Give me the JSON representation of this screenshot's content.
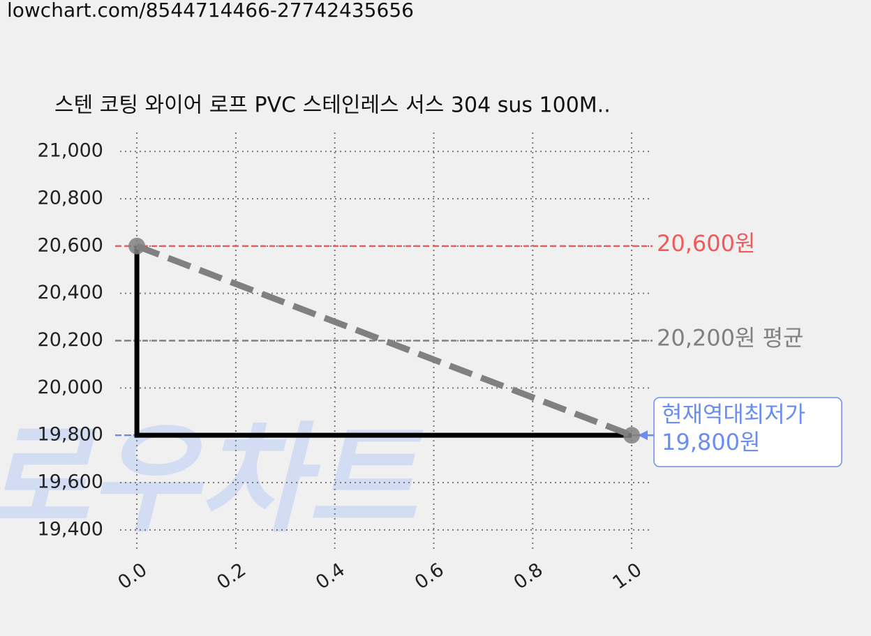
{
  "url": "lowchart.com/8544714466-27742435656",
  "watermark": "로우차트",
  "chart_data": {
    "type": "line",
    "title": "스텐 코팅 와이어 로프 PVC 스테인레스 서스 304 sus 100M..",
    "x": [
      0,
      1
    ],
    "series": [
      {
        "color": "#000000",
        "style": "step",
        "values": [
          20600,
          19800
        ]
      },
      {
        "color": "#808080",
        "style": "dashed",
        "values": [
          20600,
          19800
        ]
      }
    ],
    "xlim": [
      -0.034,
      1.038
    ],
    "ylim": [
      19320,
      21080
    ],
    "xticks": [
      {
        "value": 0,
        "label": "0.0"
      },
      0.2,
      0.4,
      0.6,
      0.8,
      {
        "value": 1,
        "label": "1.0"
      }
    ],
    "yticks": [
      {
        "value": 19400,
        "label": "19,400"
      },
      {
        "value": 19600,
        "label": "19,600"
      },
      {
        "value": 19800,
        "label": "19,800"
      },
      {
        "value": 20000,
        "label": "20,000"
      },
      {
        "value": 20200,
        "label": "20,200"
      },
      {
        "value": 20400,
        "label": "20,400"
      },
      {
        "value": 20600,
        "label": "20,600"
      },
      {
        "value": 20800,
        "label": "20,800"
      },
      {
        "value": 21000,
        "label": "21,000"
      }
    ],
    "grid": true,
    "hlines": [
      {
        "value": 20600,
        "color": "#f05a5a",
        "label": "20,600원"
      },
      {
        "value": 20200,
        "color": "#808080",
        "label": "20,200원 평균"
      },
      {
        "value": 19800,
        "color": "#6a8ef0",
        "label": "19,800원",
        "note": "현재역대최저가"
      }
    ]
  }
}
